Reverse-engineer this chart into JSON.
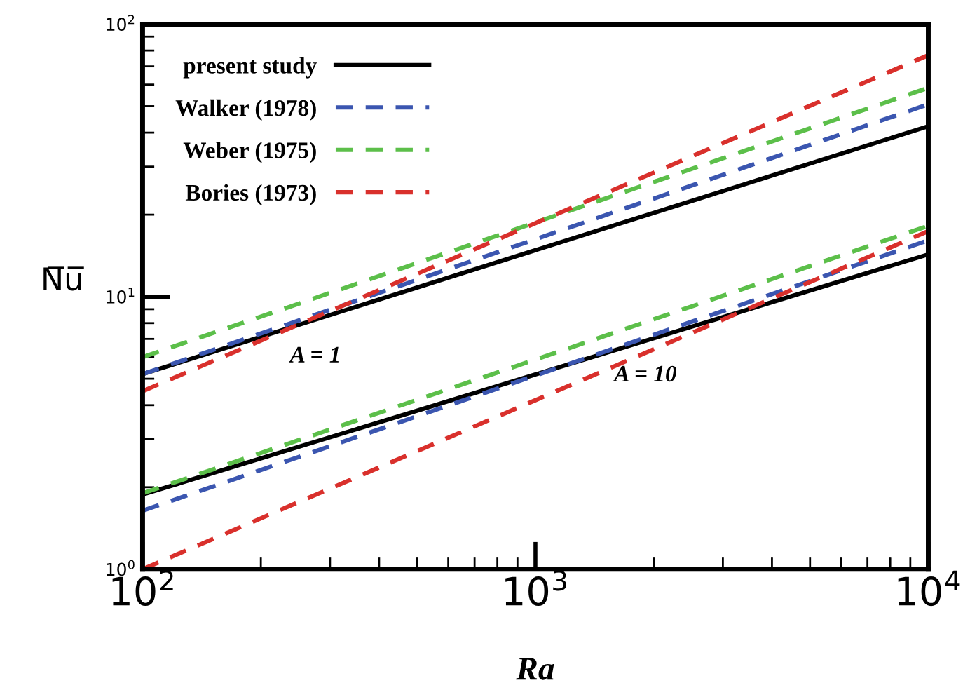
{
  "chart_data": {
    "type": "line",
    "xlabel": "Ra",
    "ylabel": "N̅u̅",
    "log": "xy",
    "xlim": [
      100,
      10000
    ],
    "ylim": [
      1,
      100
    ],
    "xticks": [
      {
        "value": 100,
        "label": "10$^{2}$"
      },
      {
        "value": 1000,
        "label": "10$^{3}$"
      },
      {
        "value": 10000,
        "label": "10$^{4}$"
      }
    ],
    "yticks": [
      {
        "value": 1,
        "label": "10$^{0}$"
      },
      {
        "value": 10,
        "label": "10$^{1}$"
      },
      {
        "value": 100,
        "label": "10$^{2}$"
      }
    ],
    "legend": "top left",
    "grid": false,
    "marker": "none",
    "x": [
      100,
      10000
    ],
    "series": [
      {
        "name": "present study",
        "color": "#000000",
        "line_style": "solid",
        "values": [
          5.2,
          42.2
        ]
      },
      {
        "name": "Walker (1978)",
        "color": "#3b56b0",
        "line_style": "dashed",
        "values": [
          5.2,
          50.8
        ]
      },
      {
        "name": "Weber (1975)",
        "color": "#5cbf4a",
        "line_style": "dashed",
        "values": [
          6.0,
          58.4
        ]
      },
      {
        "name": "Bories (1973)",
        "color": "#d9302c",
        "line_style": "dashed",
        "values": [
          4.5,
          76.9
        ]
      },
      {
        "color": "#000000",
        "line_style": "solid",
        "values": [
          1.88,
          14.3
        ]
      },
      {
        "color": "#3b56b0",
        "line_style": "dashed",
        "values": [
          1.64,
          16.1
        ]
      },
      {
        "color": "#5cbf4a",
        "line_style": "dashed",
        "values": [
          1.9,
          18.2
        ]
      },
      {
        "color": "#d9302c",
        "line_style": "dashed",
        "values": [
          1.0,
          17.4
        ]
      }
    ],
    "annotations": [
      "A = 1",
      "A = 10"
    ]
  }
}
